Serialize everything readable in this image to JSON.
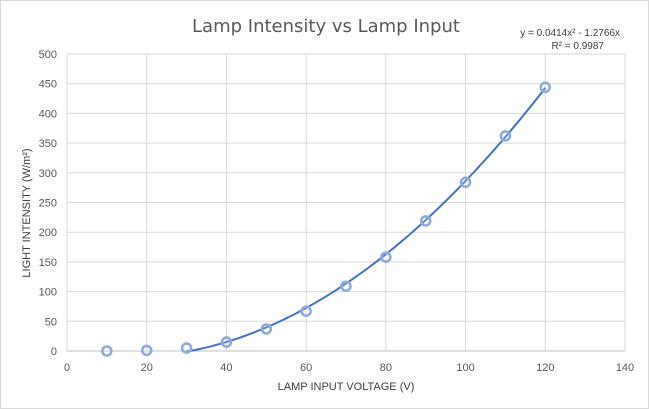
{
  "chart_data": {
    "type": "scatter",
    "title": "Lamp Intensity vs Lamp Input",
    "xlabel": "LAMP INPUT VOLTAGE (V)",
    "ylabel": "LIGHT INTENSITY (W/m²)",
    "xlim": [
      0,
      140
    ],
    "ylim": [
      0,
      500
    ],
    "x_ticks": [
      0,
      20,
      40,
      60,
      80,
      100,
      120,
      140
    ],
    "y_ticks": [
      0,
      50,
      100,
      150,
      200,
      250,
      300,
      350,
      400,
      450,
      500
    ],
    "grid": true,
    "legend": "none",
    "series": [
      {
        "x": [
          10,
          20,
          30,
          40,
          50,
          60,
          70,
          80,
          90,
          100,
          110,
          120
        ],
        "y": [
          0,
          1,
          5,
          15,
          37,
          67,
          109,
          158,
          219,
          284,
          362,
          444
        ],
        "color": "#8faadc"
      }
    ],
    "trendline": {
      "type": "polynomial",
      "a": 0.0414,
      "b": -1.2766,
      "x_range": [
        30,
        120
      ],
      "color": "#4472c4",
      "equation": "y = 0.0414x² - 1.2766x",
      "r2": "R² = 0.9987"
    }
  }
}
